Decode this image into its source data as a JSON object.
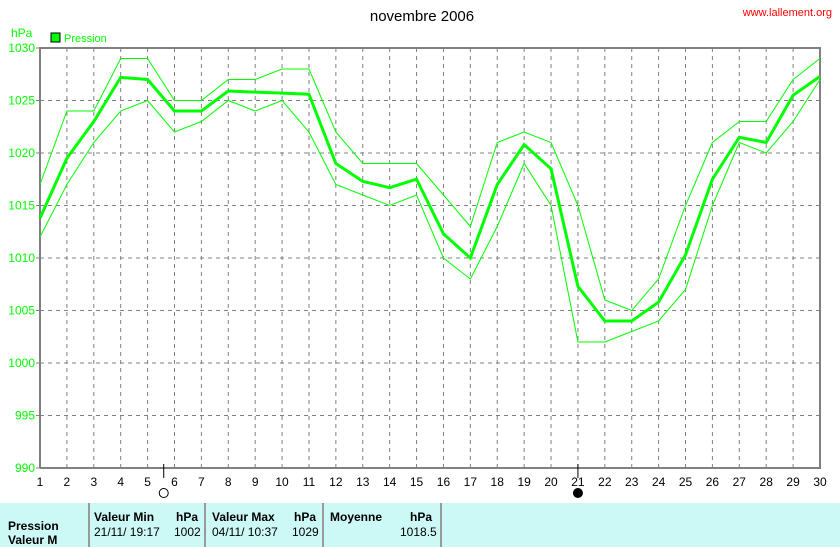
{
  "chart_data": {
    "type": "line",
    "title": "novembre 2006",
    "watermark": "www.lallement.org",
    "ylabel": "hPa",
    "legend": [
      {
        "name": "Pression",
        "color": "#00ff00"
      }
    ],
    "legend_placement": "top-left",
    "grid": true,
    "ylim": [
      990,
      1030
    ],
    "yticks": [
      990,
      995,
      1000,
      1005,
      1010,
      1015,
      1020,
      1025,
      1030
    ],
    "xlim": [
      1,
      30
    ],
    "x": [
      1,
      2,
      3,
      4,
      5,
      6,
      7,
      8,
      9,
      10,
      11,
      12,
      13,
      14,
      15,
      16,
      17,
      18,
      19,
      20,
      21,
      22,
      23,
      24,
      25,
      26,
      27,
      28,
      29,
      30
    ],
    "series": [
      {
        "role": "max",
        "values": [
          1017,
          1024,
          1024,
          1029,
          1029,
          1025,
          1025,
          1027,
          1027,
          1028,
          1028,
          1022,
          1019,
          1019,
          1019,
          1016,
          1013,
          1021,
          1022,
          1021,
          1015,
          1006,
          1005,
          1008,
          1015,
          1021,
          1023,
          1023,
          1027,
          1029
        ]
      },
      {
        "role": "mean",
        "values": [
          1013.8,
          1019.5,
          1023,
          1027.2,
          1027,
          1024,
          1024,
          1025.9,
          1025.8,
          1025.7,
          1025.6,
          1019,
          1017.3,
          1016.7,
          1017.5,
          1012.3,
          1010,
          1017,
          1020.8,
          1018.5,
          1007.3,
          1004,
          1004,
          1005.8,
          1010.3,
          1017.5,
          1021.5,
          1021,
          1025.5,
          1027.3
        ]
      },
      {
        "role": "min",
        "values": [
          1012,
          1017,
          1021,
          1024,
          1025,
          1022,
          1023,
          1025,
          1024,
          1025,
          1022,
          1017,
          1016,
          1015,
          1016,
          1010,
          1008,
          1013,
          1019,
          1015,
          1002,
          1002,
          1003,
          1004,
          1007,
          1015,
          1021,
          1020,
          1023,
          1027
        ]
      }
    ],
    "moon_markers": [
      {
        "day": 5.6,
        "type": "full-moon"
      },
      {
        "day": 21,
        "type": "new-moon"
      }
    ],
    "colors": {
      "line": "#00ff00",
      "grid": "#808080",
      "axis": "#808080",
      "table_bg": "#ccf8f6",
      "watermark": "#ff0000"
    }
  },
  "table": {
    "row_label": "Pression",
    "row_label2": "Valeur M",
    "min_header": "Valeur Min",
    "min_unit": "hPa",
    "min_date": "21/11/  19:17",
    "min_value": "1002",
    "max_header": "Valeur Max",
    "max_unit": "hPa",
    "max_date": "04/11/  10:37",
    "max_value": "1029",
    "mean_header": "Moyenne",
    "mean_unit": "hPa",
    "mean_value": "1018.5"
  }
}
